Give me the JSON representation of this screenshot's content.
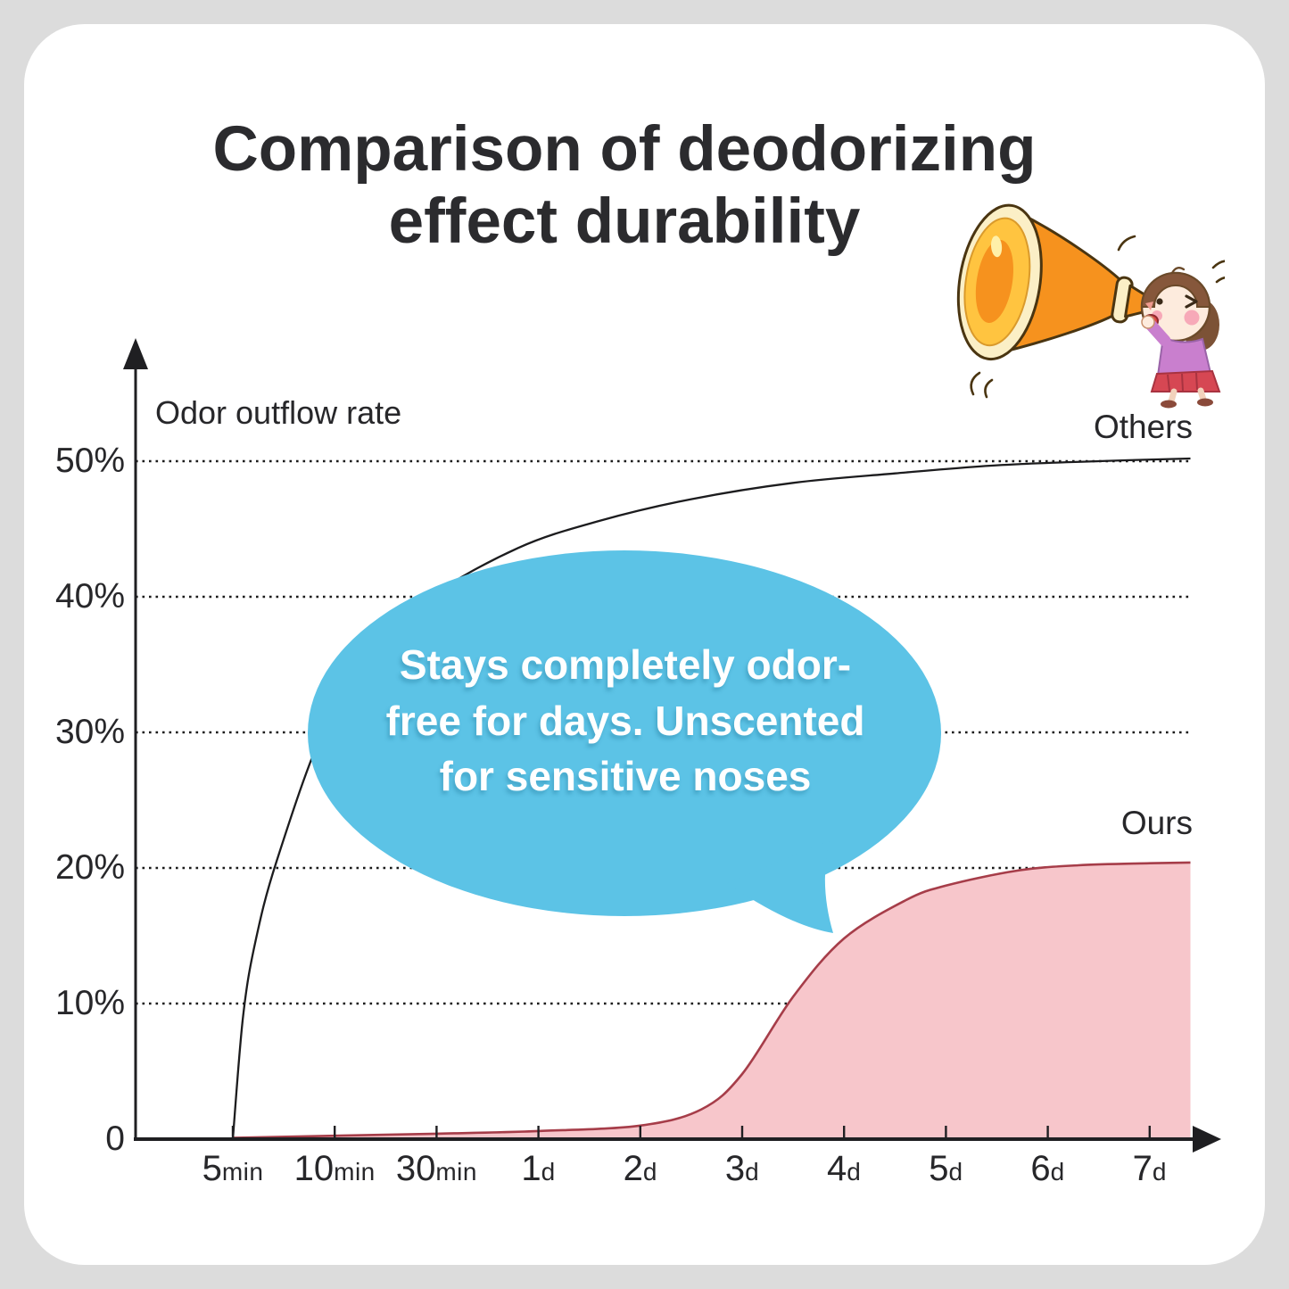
{
  "title": {
    "line1": "Comparison of deodorizing",
    "line2": "effect durability"
  },
  "annotation": {
    "line1": "Stays completely odor-",
    "line2": "free for days. Unscented",
    "line3": "for sensitive noses",
    "bubble_color": "#5cc3e6",
    "text_color": "#ffffff"
  },
  "illustration": {
    "name": "girl-shouting-into-megaphone"
  },
  "colors": {
    "background": "#dcdcdc",
    "card": "#ffffff",
    "axis": "#1f1f22",
    "title_text": "#2b2b2e"
  },
  "chart_data": {
    "type": "area",
    "title": "Comparison of deodorizing effect durability",
    "y_axis_label": "Odor outflow rate",
    "y_ticks": [
      {
        "label": "50%",
        "pct": 50
      },
      {
        "label": "40%",
        "pct": 40
      },
      {
        "label": "30%",
        "pct": 30
      },
      {
        "label": "20%",
        "pct": 20
      },
      {
        "label": "10%",
        "pct": 10
      },
      {
        "label": "0",
        "pct": 0
      }
    ],
    "gridlines_pct": [
      50,
      40,
      30,
      20,
      10
    ],
    "grid_style": "dotted",
    "x_ticks": [
      {
        "value": "5",
        "unit": "min"
      },
      {
        "value": "10",
        "unit": "min"
      },
      {
        "value": "30",
        "unit": "min"
      },
      {
        "value": "1",
        "unit": "d"
      },
      {
        "value": "2",
        "unit": "d"
      },
      {
        "value": "3",
        "unit": "d"
      },
      {
        "value": "4",
        "unit": "d"
      },
      {
        "value": "5",
        "unit": "d"
      },
      {
        "value": "6",
        "unit": "d"
      },
      {
        "value": "7",
        "unit": "d"
      }
    ],
    "ylim": [
      0,
      55
    ],
    "series": [
      {
        "name": "Others",
        "type": "line",
        "color": "#1c1c1e",
        "points_tick_pct": [
          [
            0,
            0
          ],
          [
            0.1,
            9
          ],
          [
            0.22,
            14.5
          ],
          [
            0.43,
            20.5
          ],
          [
            0.9,
            30.3
          ],
          [
            1.4,
            35.8
          ],
          [
            1.95,
            40
          ],
          [
            2.8,
            43.6
          ],
          [
            3.6,
            45.6
          ],
          [
            4.5,
            47.2
          ],
          [
            5.5,
            48.4
          ],
          [
            6.5,
            49.1
          ],
          [
            7.5,
            49.7
          ],
          [
            8.5,
            50
          ],
          [
            9.4,
            50.2
          ]
        ]
      },
      {
        "name": "Ours",
        "type": "area",
        "line_color": "#a63d49",
        "fill_color": "#f7c6cb",
        "points_tick_pct": [
          [
            0,
            0.1
          ],
          [
            1,
            0.25
          ],
          [
            2,
            0.4
          ],
          [
            3,
            0.6
          ],
          [
            4,
            1.0
          ],
          [
            4.6,
            2.2
          ],
          [
            5,
            4.8
          ],
          [
            5.5,
            10.5
          ],
          [
            6,
            14.8
          ],
          [
            6.6,
            17.6
          ],
          [
            7,
            18.7
          ],
          [
            7.7,
            19.8
          ],
          [
            8.3,
            20.2
          ],
          [
            9,
            20.35
          ],
          [
            9.4,
            20.4
          ]
        ]
      }
    ]
  }
}
